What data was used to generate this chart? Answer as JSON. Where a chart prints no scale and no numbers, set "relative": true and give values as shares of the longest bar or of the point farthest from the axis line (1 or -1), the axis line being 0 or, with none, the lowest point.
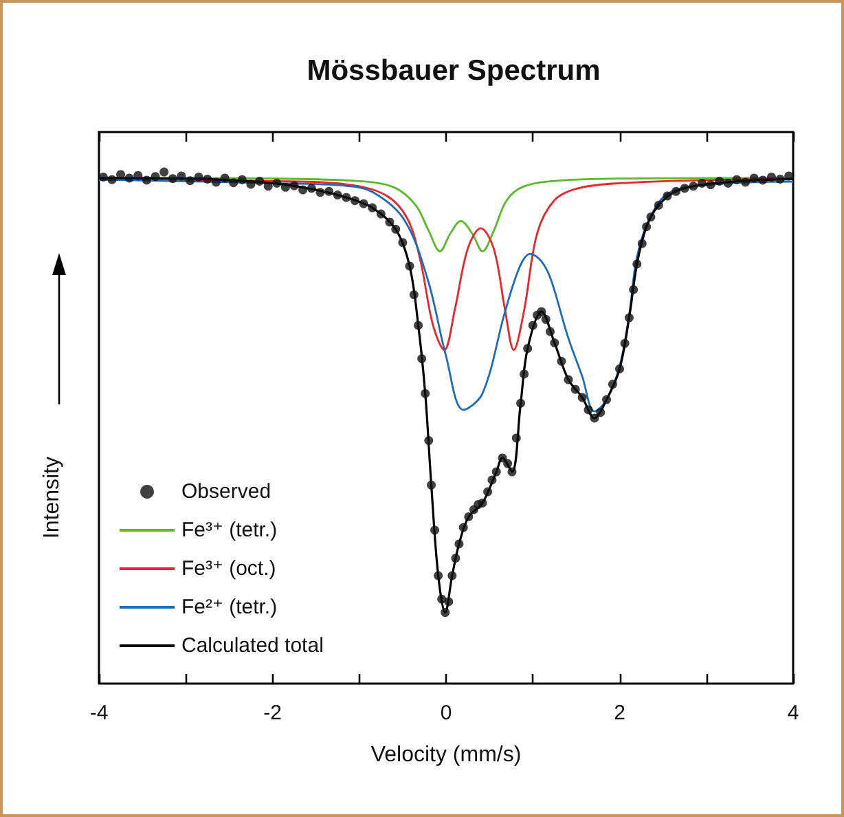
{
  "chart_data": {
    "type": "line",
    "title": "Mössbauer Spectrum",
    "xlabel": "Velocity (mm/s)",
    "ylabel": "Intensity",
    "relative": true,
    "xlim": [
      -4,
      4
    ],
    "xticks": [
      -4,
      {
        "value": -3,
        "label": null
      },
      -2,
      {
        "value": -1,
        "label": null
      },
      0,
      {
        "value": 1,
        "label": null
      },
      2,
      {
        "value": 3,
        "label": null
      },
      4
    ],
    "grid": false,
    "legend": "bottom left",
    "tick_labels": "x",
    "series": [
      {
        "name": "Observed",
        "type": "scatter",
        "marker": "circle",
        "color": "#111111",
        "x": [
          -3.95,
          -3.85,
          -3.75,
          -3.65,
          -3.55,
          -3.45,
          -3.35,
          -3.25,
          -3.15,
          -3.05,
          -2.95,
          -2.85,
          -2.75,
          -2.65,
          -2.55,
          -2.45,
          -2.35,
          -2.25,
          -2.15,
          -2.05,
          -1.95,
          -1.85,
          -1.75,
          -1.65,
          -1.55,
          -1.45,
          -1.35,
          -1.25,
          -1.15,
          -1.05,
          -0.95,
          -0.85,
          -0.75,
          -0.65,
          -0.58,
          -0.5,
          -0.42,
          -0.37,
          -0.32,
          -0.28,
          -0.24,
          -0.2,
          -0.17,
          -0.13,
          -0.09,
          -0.05,
          -0.01,
          0.03,
          0.07,
          0.11,
          0.15,
          0.2,
          0.26,
          0.32,
          0.37,
          0.42,
          0.48,
          0.53,
          0.58,
          0.65,
          0.71,
          0.76,
          0.81,
          0.86,
          0.9,
          0.94,
          1.0,
          1.05,
          1.1,
          1.15,
          1.2,
          1.25,
          1.33,
          1.41,
          1.49,
          1.57,
          1.64,
          1.71,
          1.78,
          1.85,
          1.92,
          2.0,
          2.06,
          2.11,
          2.16,
          2.2,
          2.26,
          2.31,
          2.36,
          2.45,
          2.55,
          2.65,
          2.75,
          2.85,
          2.95,
          3.05,
          3.15,
          3.25,
          3.35,
          3.45,
          3.55,
          3.65,
          3.75,
          3.85,
          3.95
        ],
        "values": [
          0.99,
          0.985,
          0.995,
          0.988,
          0.993,
          0.984,
          0.991,
          1.0,
          0.987,
          0.992,
          0.983,
          0.99,
          0.986,
          0.98,
          0.988,
          0.979,
          0.985,
          0.976,
          0.982,
          0.972,
          0.978,
          0.97,
          0.973,
          0.965,
          0.968,
          0.96,
          0.962,
          0.955,
          0.95,
          0.944,
          0.938,
          0.93,
          0.918,
          0.902,
          0.888,
          0.862,
          0.816,
          0.76,
          0.7,
          0.635,
          0.567,
          0.475,
          0.388,
          0.3,
          0.211,
          0.165,
          0.139,
          0.16,
          0.211,
          0.245,
          0.273,
          0.305,
          0.326,
          0.34,
          0.35,
          0.353,
          0.375,
          0.398,
          0.414,
          0.441,
          0.43,
          0.414,
          0.48,
          0.548,
          0.605,
          0.655,
          0.7,
          0.72,
          0.727,
          0.712,
          0.688,
          0.666,
          0.63,
          0.594,
          0.575,
          0.559,
          0.535,
          0.519,
          0.53,
          0.555,
          0.585,
          0.615,
          0.665,
          0.715,
          0.77,
          0.82,
          0.86,
          0.893,
          0.912,
          0.935,
          0.953,
          0.962,
          0.968,
          0.972,
          0.978,
          0.975,
          0.982,
          0.978,
          0.985,
          0.98,
          0.988,
          0.984,
          0.99,
          0.986,
          0.992
        ]
      },
      {
        "name": "Fe³⁺ (tetr.)",
        "marker": "none",
        "color": "#5cb82e",
        "x": [
          -4,
          -2,
          -1,
          -0.6,
          -0.35,
          -0.2,
          -0.07,
          0.05,
          0.17,
          0.3,
          0.42,
          0.55,
          0.7,
          0.9,
          1.3,
          2,
          4
        ],
        "values": [
          0.988,
          0.987,
          0.982,
          0.97,
          0.935,
          0.885,
          0.845,
          0.88,
          0.904,
          0.88,
          0.845,
          0.885,
          0.945,
          0.972,
          0.983,
          0.987,
          0.988
        ]
      },
      {
        "name": "Fe³⁺ (oct.)",
        "marker": "none",
        "color": "#e8262b",
        "x": [
          -4,
          -2,
          -1.16,
          -0.7,
          -0.45,
          -0.3,
          -0.15,
          -0.02,
          0.1,
          0.25,
          0.4,
          0.55,
          0.68,
          0.78,
          0.9,
          1.05,
          1.25,
          1.52,
          2,
          3,
          4
        ],
        "values": [
          0.985,
          0.982,
          0.976,
          0.955,
          0.91,
          0.83,
          0.7,
          0.652,
          0.73,
          0.85,
          0.89,
          0.85,
          0.73,
          0.652,
          0.73,
          0.88,
          0.945,
          0.968,
          0.978,
          0.984,
          0.986
        ]
      },
      {
        "name": "Fe²⁺ (tetr.)",
        "marker": "none",
        "color": "#1f6db5",
        "x": [
          -4,
          -2,
          -1.16,
          -0.84,
          -0.48,
          -0.21,
          0,
          0.2,
          0.42,
          0.68,
          0.85,
          0.97,
          1.1,
          1.21,
          1.4,
          1.57,
          1.71,
          1.85,
          2,
          2.11,
          2.2,
          2.36,
          2.58,
          3.1,
          4
        ],
        "values": [
          0.985,
          0.978,
          0.973,
          0.96,
          0.906,
          0.789,
          0.64,
          0.535,
          0.567,
          0.727,
          0.815,
          0.84,
          0.825,
          0.789,
          0.68,
          0.6,
          0.532,
          0.555,
          0.62,
          0.72,
          0.834,
          0.914,
          0.96,
          0.976,
          0.981
        ]
      },
      {
        "name": "Calculated total",
        "marker": "none",
        "color": "#000000",
        "x": [
          -4,
          -3,
          -2,
          -1.5,
          -1.15,
          -0.85,
          -0.58,
          -0.42,
          -0.32,
          -0.24,
          -0.17,
          -0.09,
          -0.01,
          0.07,
          0.15,
          0.26,
          0.42,
          0.58,
          0.65,
          0.76,
          0.86,
          0.94,
          1.1,
          1.25,
          1.41,
          1.57,
          1.71,
          1.85,
          2,
          2.11,
          2.2,
          2.31,
          2.45,
          2.65,
          3,
          3.5,
          4
        ],
        "values": [
          0.988,
          0.987,
          0.978,
          0.965,
          0.95,
          0.93,
          0.888,
          0.816,
          0.7,
          0.567,
          0.388,
          0.211,
          0.139,
          0.211,
          0.273,
          0.326,
          0.353,
          0.414,
          0.441,
          0.414,
          0.548,
          0.655,
          0.727,
          0.666,
          0.594,
          0.559,
          0.519,
          0.555,
          0.615,
          0.715,
          0.82,
          0.893,
          0.935,
          0.962,
          0.976,
          0.983,
          0.986
        ]
      }
    ]
  }
}
